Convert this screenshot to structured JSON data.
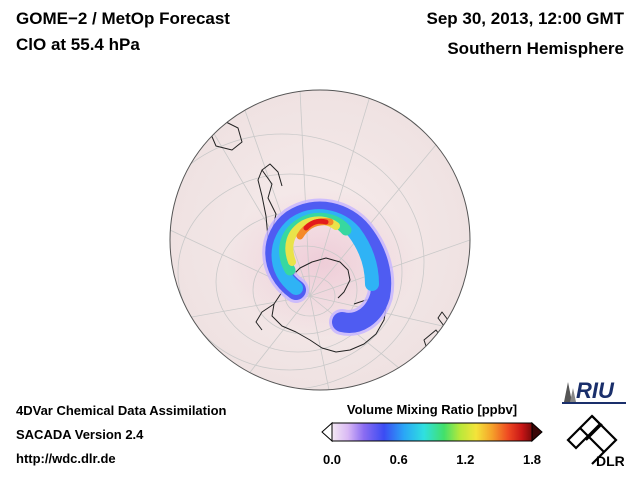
{
  "header": {
    "title": "GOME−2 / MetOp Forecast",
    "species": "ClO at 55.4 hPa",
    "datetime": "Sep 30, 2013, 12:00 GMT",
    "hemisphere": "Southern Hemisphere"
  },
  "footer": {
    "line1": "4DVar Chemical Data Assimilation",
    "line2": "SACADA Version 2.4",
    "line3": "http://wdc.dlr.de"
  },
  "colorbar": {
    "title": "Volume Mixing Ratio [ppbv]",
    "min": 0.0,
    "max": 1.8,
    "ticks": [
      "0.0",
      "0.6",
      "1.2",
      "1.8"
    ]
  },
  "logos": {
    "riu": "RIU",
    "dlr": "DLR"
  },
  "colors": {
    "background": "#ffffff",
    "globe_fill": "#f3e6e6",
    "coastline": "#222222",
    "graticule": "#c9c9c9"
  }
}
